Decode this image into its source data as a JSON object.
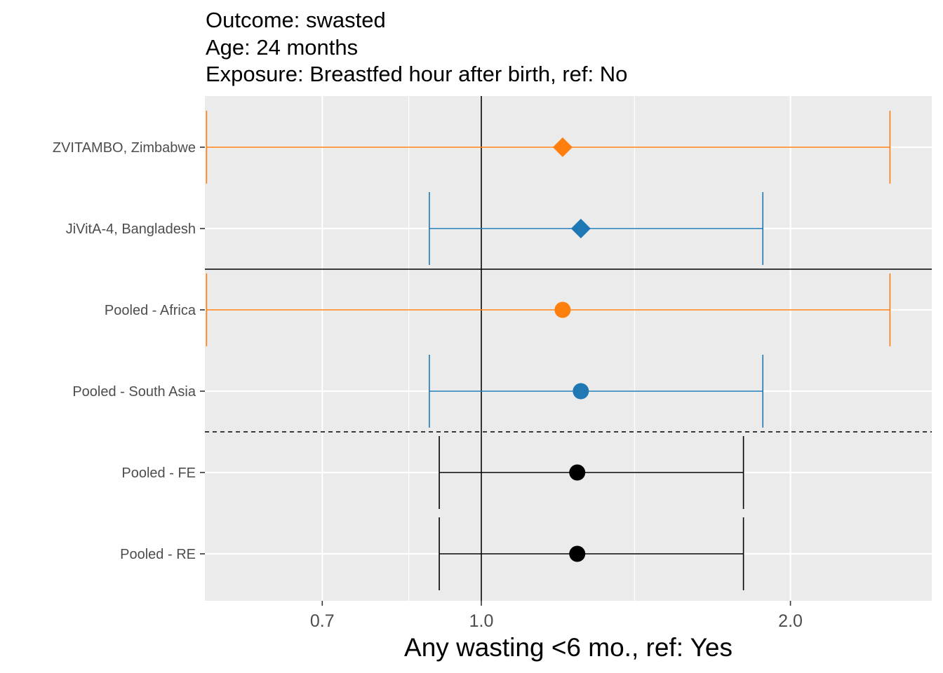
{
  "title_lines": [
    "Outcome: swasted",
    "Age: 24 months",
    "Exposure: Breastfed hour after birth, ref: No"
  ],
  "colors": {
    "africa": "#FF7F0E",
    "south_asia": "#1F77B4",
    "pooled": "#000000",
    "panel_bg": "#EBEBEB",
    "grid": "#FFFFFF"
  },
  "chart_data": {
    "type": "forest",
    "x_scale": "log",
    "xlabel": "Any wasting  <6 mo., ref: Yes",
    "xlim": [
      0.5,
      2.55
    ],
    "x_ticks": [
      {
        "value": 0.7,
        "label": "0.7"
      },
      {
        "value": 1.0,
        "label": "1.0"
      },
      {
        "value": 2.0,
        "label": "2.0"
      }
    ],
    "x_minor_gridlines": [
      0.85,
      1.41
    ],
    "reference_line": 1.0,
    "rows": [
      {
        "label": "ZVITAMBO, Zimbabwe",
        "estimate": 1.2,
        "ci_lower": 0.54,
        "ci_upper": 2.5,
        "shape": "diamond",
        "color_key": "africa"
      },
      {
        "label": "JiVitA-4, Bangladesh",
        "estimate": 1.25,
        "ci_lower": 0.89,
        "ci_upper": 1.88,
        "shape": "diamond",
        "color_key": "south_asia"
      },
      {
        "label": "Pooled - Africa",
        "estimate": 1.2,
        "ci_lower": 0.54,
        "ci_upper": 2.5,
        "shape": "circle",
        "color_key": "africa"
      },
      {
        "label": "Pooled - South Asia",
        "estimate": 1.25,
        "ci_lower": 0.89,
        "ci_upper": 1.88,
        "shape": "circle",
        "color_key": "south_asia"
      },
      {
        "label": "Pooled - FE",
        "estimate": 1.24,
        "ci_lower": 0.91,
        "ci_upper": 1.8,
        "shape": "circle",
        "color_key": "pooled"
      },
      {
        "label": "Pooled - RE",
        "estimate": 1.24,
        "ci_lower": 0.91,
        "ci_upper": 1.8,
        "shape": "circle",
        "color_key": "pooled"
      }
    ],
    "separators": [
      {
        "after_row": 1,
        "style": "solid"
      },
      {
        "after_row": 3,
        "style": "dashed"
      }
    ]
  }
}
